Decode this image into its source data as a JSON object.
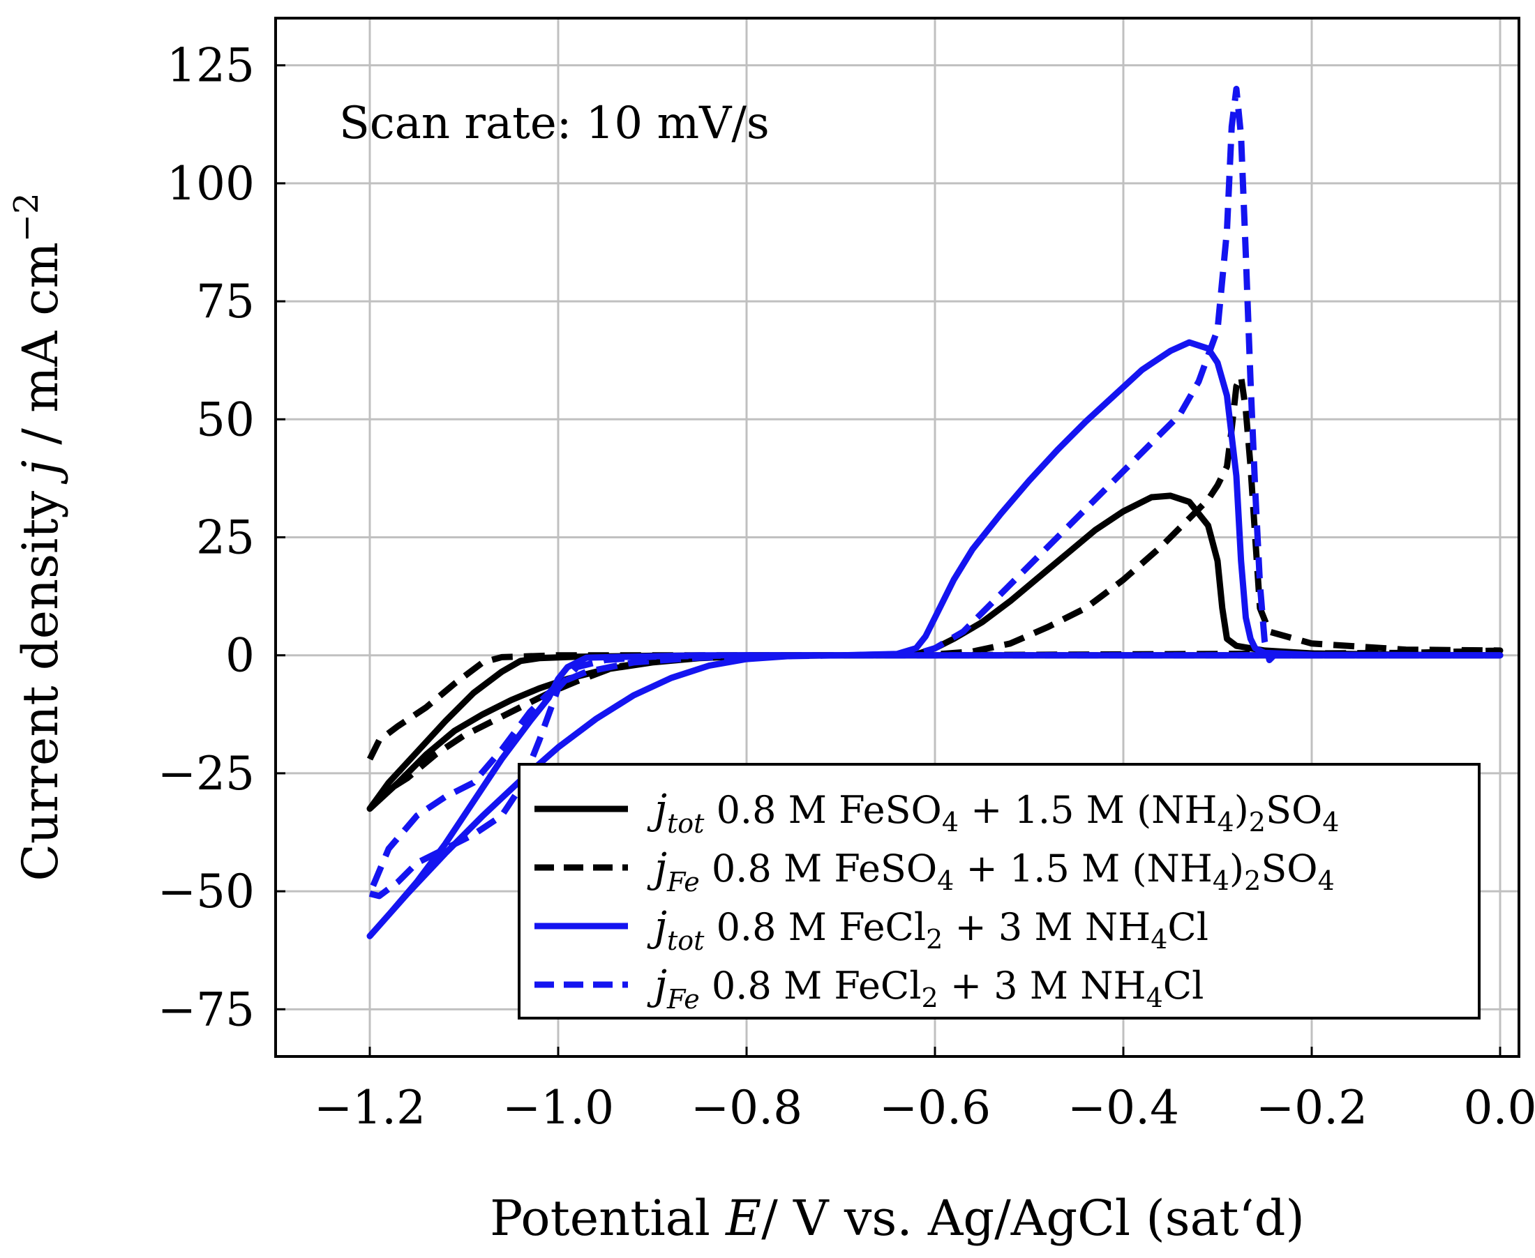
{
  "chart_data": {
    "type": "line",
    "title": "",
    "annotation": "Scan rate: 10 mV/s",
    "xlabel": "Potential E/ V vs. Ag/AgCl (sat‘d)",
    "xlabel_parts": {
      "pre": "Potential ",
      "var": "E",
      "post": "/ V vs. Ag/AgCl (sat‘d)"
    },
    "ylabel": "Current density j / mA cm−2",
    "ylabel_parts": {
      "pre": "Current density ",
      "var": "j",
      "post": " / mA cm",
      "sup": "−2"
    },
    "xlim": [
      -1.3,
      0.02
    ],
    "ylim": [
      -85,
      135
    ],
    "xticks": [
      -1.2,
      -1.0,
      -0.8,
      -0.6,
      -0.4,
      -0.2,
      0.0
    ],
    "xtick_labels": [
      "−1.2",
      "−1.0",
      "−0.8",
      "−0.6",
      "−0.4",
      "−0.2",
      "0.0"
    ],
    "yticks": [
      -75,
      -50,
      -25,
      0,
      25,
      50,
      75,
      100,
      125
    ],
    "ytick_labels": [
      "−75",
      "−50",
      "−25",
      "0",
      "25",
      "50",
      "75",
      "100",
      "125"
    ],
    "grid": true,
    "legend_position": "bottom-right",
    "series": [
      {
        "name": "j_tot 0.8 M FeSO4 + 1.5 M (NH4)2SO4",
        "legend": {
          "sym": "j",
          "sub": "tot",
          "text": " 0.8 M FeSO",
          "parts": [
            [
              "4",
              " + 1.5 M (NH"
            ],
            [
              "4",
              ")"
            ],
            [
              "2",
              "SO"
            ],
            [
              "4",
              ""
            ]
          ]
        },
        "color": "#000000",
        "dash": "solid",
        "points": [
          [
            -1.2,
            -32.5
          ],
          [
            -1.17,
            -27
          ],
          [
            -1.14,
            -21
          ],
          [
            -1.11,
            -16
          ],
          [
            -1.08,
            -12.5
          ],
          [
            -1.05,
            -9.5
          ],
          [
            -1.02,
            -7
          ],
          [
            -0.99,
            -5
          ],
          [
            -0.95,
            -3
          ],
          [
            -0.9,
            -1.5
          ],
          [
            -0.85,
            -0.6
          ],
          [
            -0.8,
            -0.2
          ],
          [
            -0.7,
            0
          ],
          [
            -0.62,
            0.2
          ],
          [
            -0.6,
            1.5
          ],
          [
            -0.58,
            3.5
          ],
          [
            -0.55,
            7
          ],
          [
            -0.52,
            11.5
          ],
          [
            -0.49,
            16.5
          ],
          [
            -0.46,
            21.5
          ],
          [
            -0.43,
            26.5
          ],
          [
            -0.4,
            30.5
          ],
          [
            -0.37,
            33.5
          ],
          [
            -0.35,
            33.8
          ],
          [
            -0.33,
            32.5
          ],
          [
            -0.31,
            27.5
          ],
          [
            -0.3,
            20
          ],
          [
            -0.295,
            10
          ],
          [
            -0.29,
            3.5
          ],
          [
            -0.28,
            2
          ],
          [
            -0.25,
            1
          ],
          [
            -0.2,
            0.4
          ],
          [
            -0.1,
            0.1
          ],
          [
            0.0,
            0
          ],
          [
            -0.1,
            0
          ],
          [
            -0.3,
            0
          ],
          [
            -0.5,
            0
          ],
          [
            -0.7,
            0
          ],
          [
            -0.8,
            0
          ],
          [
            -0.9,
            -0.1
          ],
          [
            -0.98,
            -0.3
          ],
          [
            -1.02,
            -0.6
          ],
          [
            -1.04,
            -1.2
          ],
          [
            -1.06,
            -3.5
          ],
          [
            -1.09,
            -8
          ],
          [
            -1.12,
            -14
          ],
          [
            -1.15,
            -20.5
          ],
          [
            -1.18,
            -27
          ],
          [
            -1.2,
            -32.5
          ]
        ]
      },
      {
        "name": "j_Fe 0.8 M FeSO4 + 1.5 M (NH4)2SO4",
        "legend": {
          "sym": "j",
          "sub": "Fe",
          "text": " 0.8 M FeSO",
          "parts": [
            [
              "4",
              " + 1.5 M (NH"
            ],
            [
              "4",
              ")"
            ],
            [
              "2",
              "SO"
            ],
            [
              "4",
              ""
            ]
          ]
        },
        "color": "#000000",
        "dash": "dashed",
        "points": [
          [
            -1.2,
            -22
          ],
          [
            -1.19,
            -18
          ],
          [
            -1.17,
            -15
          ],
          [
            -1.14,
            -11
          ],
          [
            -1.11,
            -6
          ],
          [
            -1.08,
            -1.5
          ],
          [
            -1.06,
            -0.4
          ],
          [
            -1.0,
            0
          ],
          [
            -0.9,
            0
          ],
          [
            -0.8,
            0
          ],
          [
            -0.7,
            0
          ],
          [
            -0.6,
            0.2
          ],
          [
            -0.56,
            0.8
          ],
          [
            -0.52,
            2.5
          ],
          [
            -0.48,
            6
          ],
          [
            -0.44,
            10
          ],
          [
            -0.4,
            16
          ],
          [
            -0.36,
            23
          ],
          [
            -0.33,
            29
          ],
          [
            -0.31,
            33
          ],
          [
            -0.3,
            36
          ],
          [
            -0.29,
            40
          ],
          [
            -0.285,
            48
          ],
          [
            -0.28,
            57
          ],
          [
            -0.275,
            59
          ],
          [
            -0.27,
            52
          ],
          [
            -0.265,
            40
          ],
          [
            -0.26,
            25
          ],
          [
            -0.255,
            10
          ],
          [
            -0.245,
            5
          ],
          [
            -0.2,
            2.5
          ],
          [
            -0.1,
            1.2
          ],
          [
            0.0,
            1
          ],
          [
            -0.1,
            0.5
          ],
          [
            -0.3,
            0.3
          ],
          [
            -0.5,
            0.1
          ],
          [
            -0.7,
            0
          ],
          [
            -0.8,
            -0.1
          ],
          [
            -0.88,
            -0.8
          ],
          [
            -0.94,
            -2.5
          ],
          [
            -0.98,
            -5.5
          ],
          [
            -1.01,
            -8
          ],
          [
            -1.04,
            -11
          ],
          [
            -1.07,
            -14
          ],
          [
            -1.1,
            -17
          ],
          [
            -1.13,
            -21
          ],
          [
            -1.16,
            -26
          ],
          [
            -1.18,
            -28.5
          ]
        ]
      },
      {
        "name": "j_tot 0.8 M FeCl2 + 3 M NH4Cl",
        "legend": {
          "sym": "j",
          "sub": "tot",
          "text": " 0.8 M FeCl",
          "parts": [
            [
              "2",
              " + 3 M NH"
            ],
            [
              "4",
              "Cl"
            ]
          ]
        },
        "color": "#1414f0",
        "dash": "solid",
        "points": [
          [
            -1.2,
            -59.5
          ],
          [
            -1.16,
            -50.5
          ],
          [
            -1.12,
            -42
          ],
          [
            -1.08,
            -34
          ],
          [
            -1.04,
            -26.5
          ],
          [
            -1.0,
            -19.5
          ],
          [
            -0.96,
            -13.5
          ],
          [
            -0.92,
            -8.5
          ],
          [
            -0.88,
            -4.8
          ],
          [
            -0.84,
            -2.2
          ],
          [
            -0.8,
            -0.8
          ],
          [
            -0.75,
            -0.1
          ],
          [
            -0.7,
            0
          ],
          [
            -0.64,
            0.3
          ],
          [
            -0.62,
            1.5
          ],
          [
            -0.61,
            4
          ],
          [
            -0.6,
            8
          ],
          [
            -0.58,
            16
          ],
          [
            -0.56,
            22.5
          ],
          [
            -0.53,
            30
          ],
          [
            -0.5,
            37
          ],
          [
            -0.47,
            43.5
          ],
          [
            -0.44,
            49.5
          ],
          [
            -0.41,
            55
          ],
          [
            -0.38,
            60.5
          ],
          [
            -0.35,
            64.5
          ],
          [
            -0.33,
            66.3
          ],
          [
            -0.31,
            65
          ],
          [
            -0.3,
            62
          ],
          [
            -0.29,
            55
          ],
          [
            -0.28,
            38
          ],
          [
            -0.275,
            20
          ],
          [
            -0.27,
            8
          ],
          [
            -0.265,
            3.5
          ],
          [
            -0.26,
            1.5
          ],
          [
            -0.25,
            0.5
          ],
          [
            -0.2,
            0.1
          ],
          [
            0.0,
            0
          ],
          [
            -0.2,
            0
          ],
          [
            -0.5,
            0
          ],
          [
            -0.7,
            0
          ],
          [
            -0.85,
            0
          ],
          [
            -0.97,
            -0.5
          ],
          [
            -0.99,
            -2.5
          ],
          [
            -1.0,
            -5
          ],
          [
            -1.01,
            -9
          ],
          [
            -1.03,
            -14
          ],
          [
            -1.06,
            -22
          ],
          [
            -1.09,
            -31
          ],
          [
            -1.12,
            -40
          ],
          [
            -1.15,
            -48
          ],
          [
            -1.18,
            -55
          ],
          [
            -1.2,
            -59.5
          ]
        ]
      },
      {
        "name": "j_Fe 0.8 M FeCl2 + 3 M NH4Cl",
        "legend": {
          "sym": "j",
          "sub": "Fe",
          "text": " 0.8 M FeCl",
          "parts": [
            [
              "2",
              " + 3 M NH"
            ],
            [
              "4",
              "Cl"
            ]
          ]
        },
        "color": "#1414f0",
        "dash": "dashed",
        "points": [
          [
            -1.2,
            -50.5
          ],
          [
            -1.19,
            -51
          ],
          [
            -1.17,
            -48
          ],
          [
            -1.15,
            -44
          ],
          [
            -1.12,
            -41
          ],
          [
            -1.09,
            -38
          ],
          [
            -1.06,
            -34
          ],
          [
            -1.04,
            -28
          ],
          [
            -1.02,
            -18
          ],
          [
            -1.0,
            -7
          ],
          [
            -0.98,
            -2.5
          ],
          [
            -0.95,
            -1
          ],
          [
            -0.9,
            -0.3
          ],
          [
            -0.8,
            0
          ],
          [
            -0.7,
            0
          ],
          [
            -0.62,
            0.3
          ],
          [
            -0.6,
            1.5
          ],
          [
            -0.57,
            5
          ],
          [
            -0.54,
            11
          ],
          [
            -0.51,
            17
          ],
          [
            -0.48,
            23
          ],
          [
            -0.45,
            29
          ],
          [
            -0.42,
            35
          ],
          [
            -0.39,
            41
          ],
          [
            -0.36,
            47
          ],
          [
            -0.34,
            51
          ],
          [
            -0.32,
            58
          ],
          [
            -0.3,
            69
          ],
          [
            -0.29,
            90
          ],
          [
            -0.285,
            112
          ],
          [
            -0.28,
            120
          ],
          [
            -0.275,
            110
          ],
          [
            -0.27,
            85
          ],
          [
            -0.265,
            58
          ],
          [
            -0.26,
            35
          ],
          [
            -0.255,
            15
          ],
          [
            -0.25,
            3
          ],
          [
            -0.245,
            -1
          ],
          [
            -0.24,
            0
          ],
          [
            -0.2,
            0
          ],
          [
            0.0,
            0
          ],
          [
            -0.2,
            0
          ],
          [
            -0.5,
            0
          ],
          [
            -0.7,
            0
          ],
          [
            -0.85,
            -0.5
          ],
          [
            -0.92,
            -1.5
          ],
          [
            -0.97,
            -3.5
          ],
          [
            -1.0,
            -6
          ],
          [
            -1.03,
            -12
          ],
          [
            -1.06,
            -20
          ],
          [
            -1.09,
            -27
          ],
          [
            -1.12,
            -30
          ],
          [
            -1.15,
            -34
          ],
          [
            -1.18,
            -41
          ],
          [
            -1.2,
            -50.5
          ]
        ]
      }
    ]
  }
}
